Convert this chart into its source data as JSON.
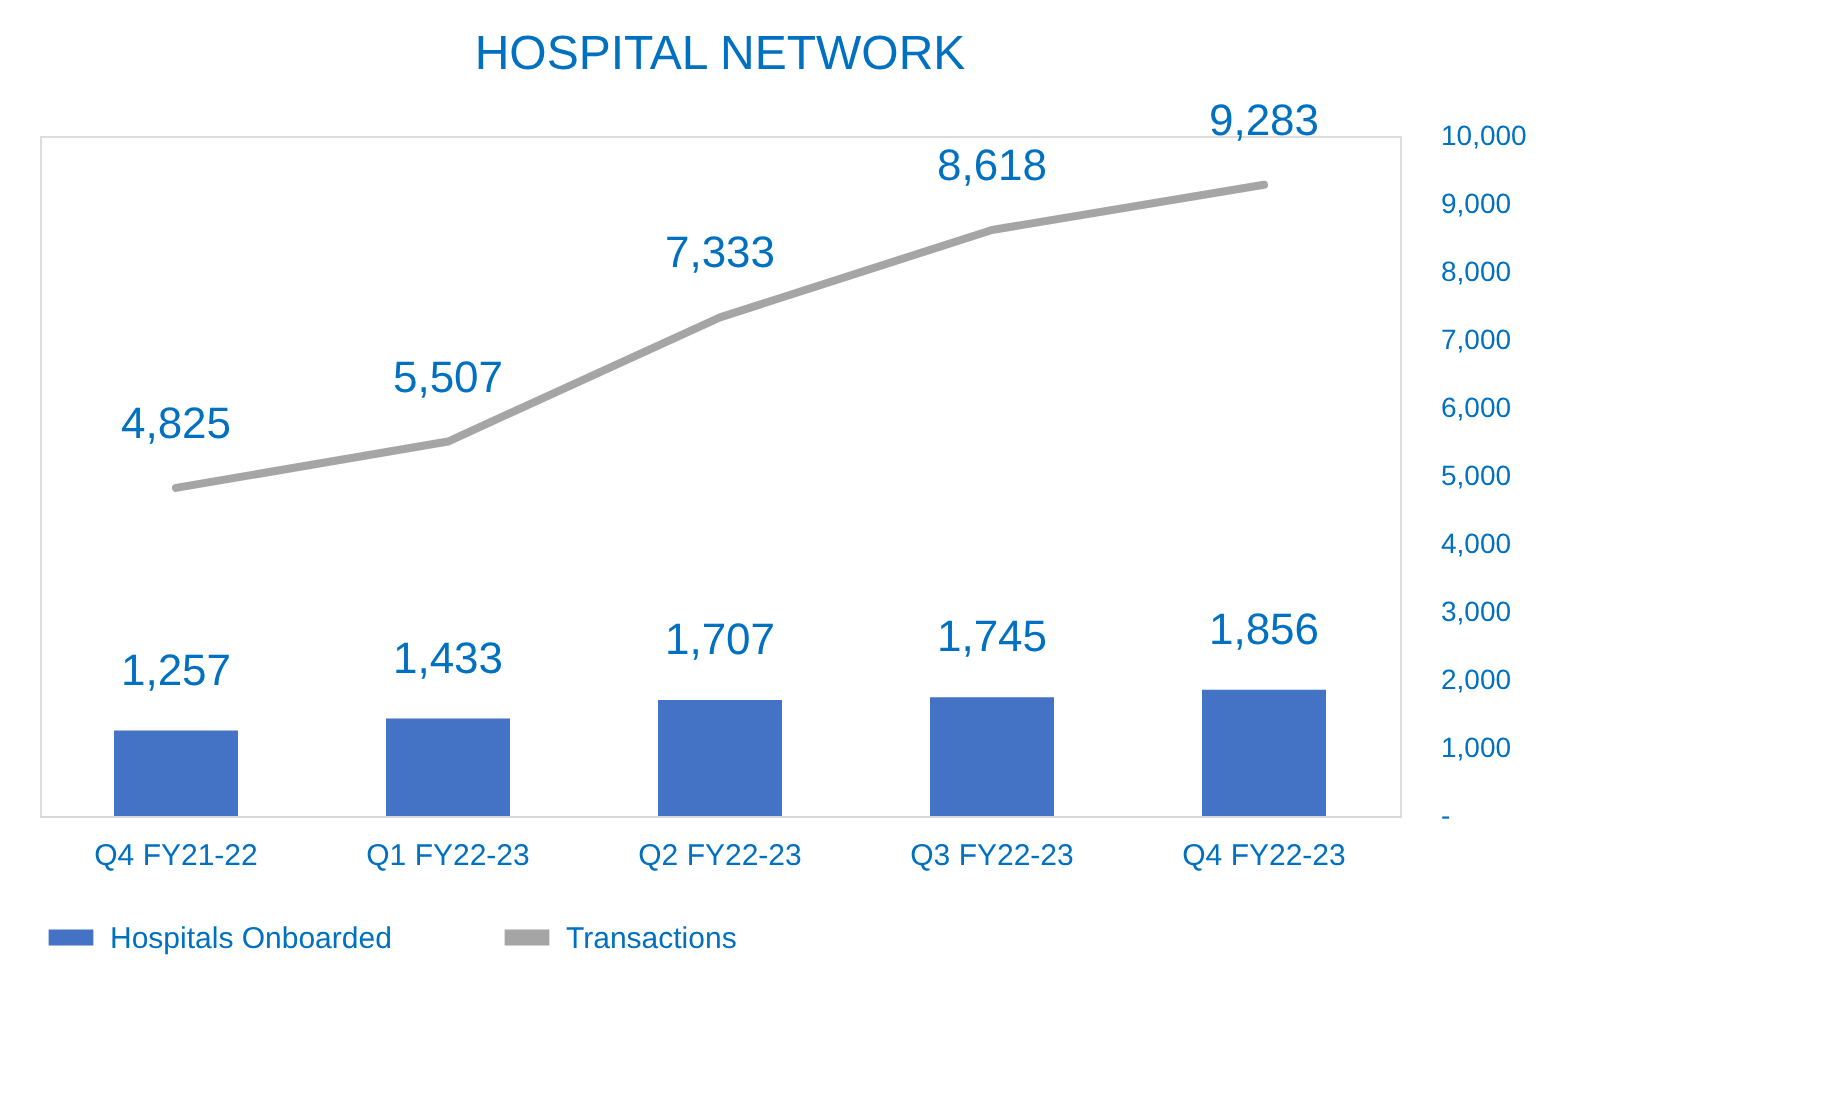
{
  "chart_data": {
    "type": "bar",
    "title": "HOSPITAL NETWORK",
    "categories": [
      "Q4 FY21-22",
      "Q1 FY22-23",
      "Q2 FY22-23",
      "Q3 FY22-23",
      "Q4 FY22-23"
    ],
    "series": [
      {
        "name": "Hospitals Onboarded",
        "type": "bar",
        "color": "#4472c4",
        "values": [
          1257,
          1433,
          1707,
          1745,
          1856
        ],
        "value_labels": [
          "1,257",
          "1,433",
          "1,707",
          "1,745",
          "1,856"
        ]
      },
      {
        "name": "Transactions",
        "type": "line",
        "color": "#a5a5a5",
        "values": [
          4825,
          5507,
          7333,
          8618,
          9283
        ],
        "value_labels": [
          "4,825",
          "5,507",
          "7,333",
          "8,618",
          "9,283"
        ]
      }
    ],
    "ylim": [
      0,
      10000
    ],
    "yticks": [
      {
        "value": 0,
        "label": "-"
      },
      {
        "value": 1000,
        "label": "1,000"
      },
      {
        "value": 2000,
        "label": "2,000"
      },
      {
        "value": 3000,
        "label": "3,000"
      },
      {
        "value": 4000,
        "label": "4,000"
      },
      {
        "value": 5000,
        "label": "5,000"
      },
      {
        "value": 6000,
        "label": "6,000"
      },
      {
        "value": 7000,
        "label": "7,000"
      },
      {
        "value": 8000,
        "label": "8,000"
      },
      {
        "value": 9000,
        "label": "9,000"
      },
      {
        "value": 10000,
        "label": "10,000"
      }
    ],
    "grid": false,
    "legend": "bottom",
    "marker": "none",
    "line_style": "solid"
  }
}
